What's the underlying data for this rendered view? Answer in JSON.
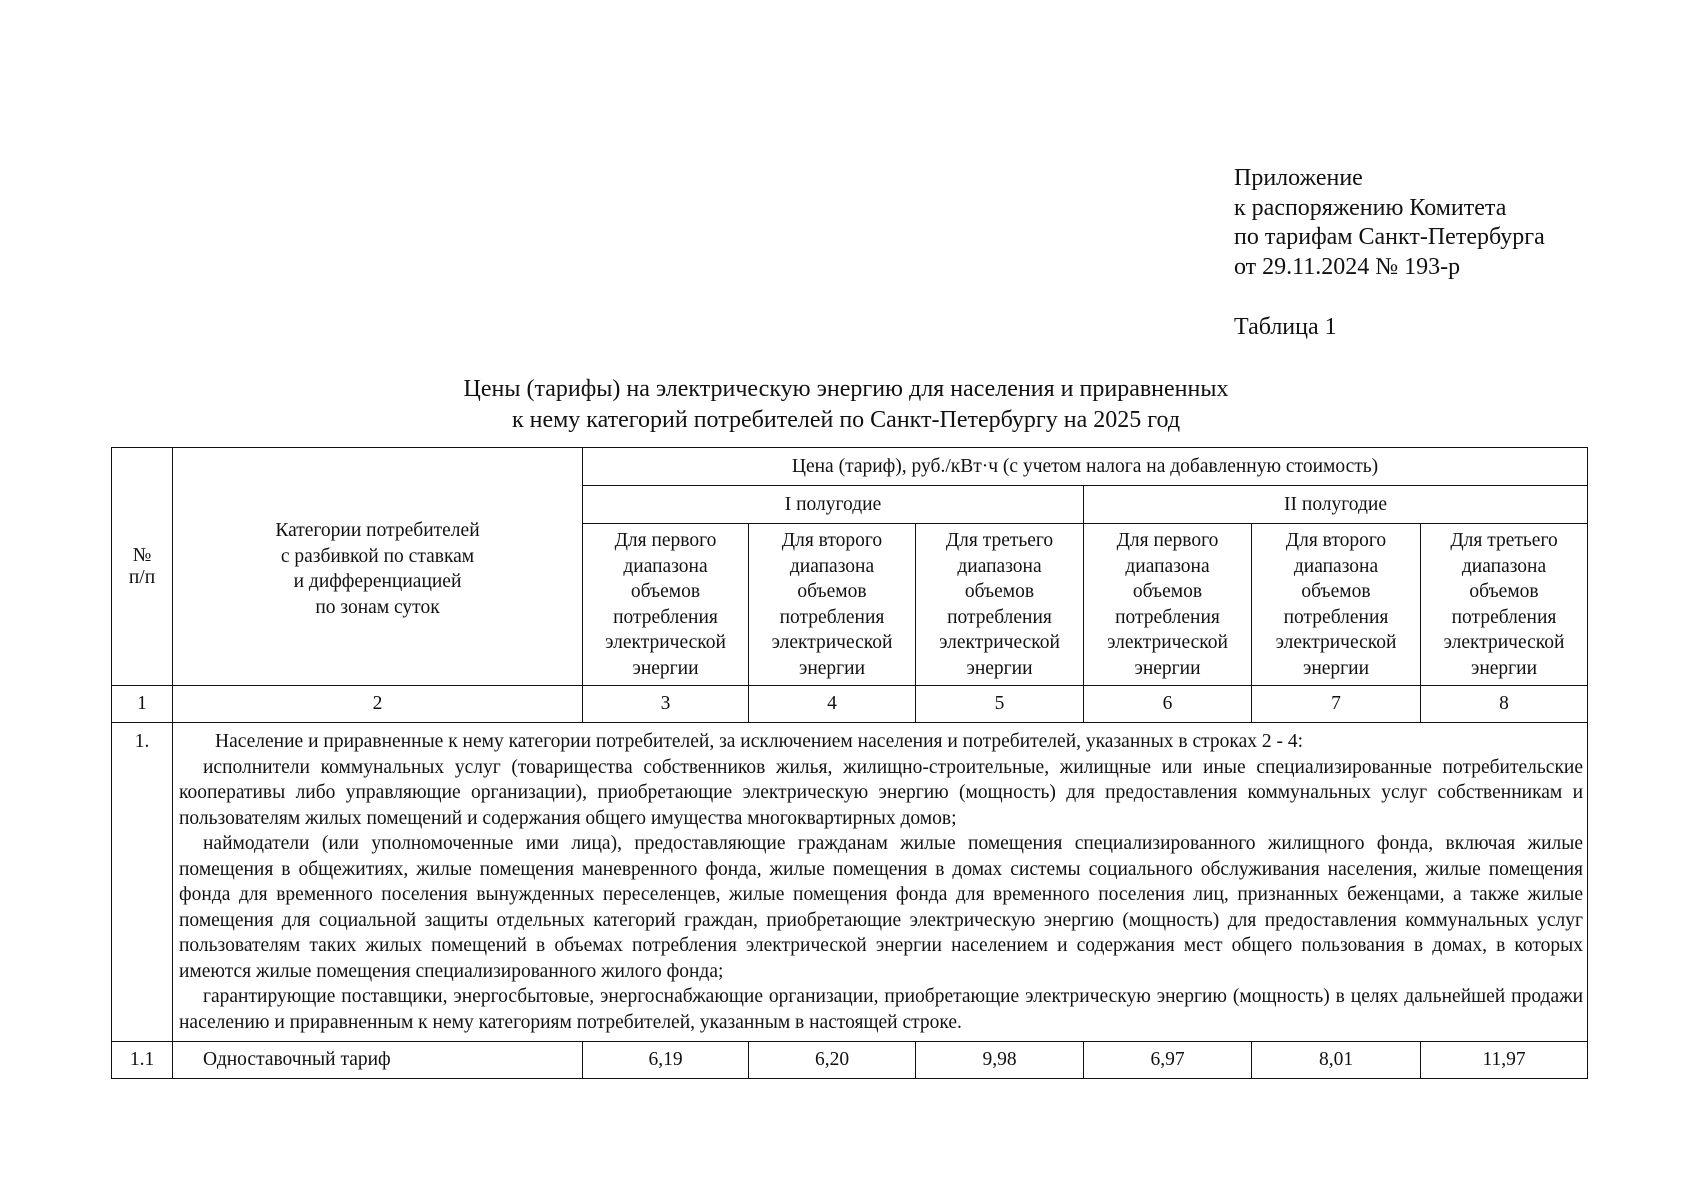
{
  "appendix": {
    "lines": [
      "Приложение",
      "к распоряжению Комитета",
      "по тарифам Санкт-Петербурга",
      "от 29.11.2024 № 193-р"
    ]
  },
  "table_label": "Таблица 1",
  "title": {
    "line1": "Цены (тарифы) на электрическую энергию для населения и приравненных",
    "line2": "к нему категорий потребителей по Санкт-Петербургу на 2025 год"
  },
  "table": {
    "col_no": "№ п/п",
    "col_category": [
      "Категории потребителей",
      "с разбивкой по ставкам",
      "и дифференциацией",
      "по зонам суток"
    ],
    "price_header": "Цена (тариф), руб./кВт·ч (с учетом налога на добавленную стоимость)",
    "half1": "I полугодие",
    "half2": "II полугодие",
    "ranges": [
      [
        "Для первого",
        "диапазона",
        "объемов",
        "потребления",
        "электрической",
        "энергии"
      ],
      [
        "Для второго",
        "диапазона",
        "объемов",
        "потребления",
        "электрической",
        "энергии"
      ],
      [
        "Для третьего",
        "диапазона",
        "объемов",
        "потребления",
        "электрической",
        "энергии"
      ],
      [
        "Для первого",
        "диапазона",
        "объемов",
        "потребления",
        "электрической",
        "энергии"
      ],
      [
        "Для второго",
        "диапазона",
        "объемов",
        "потребления",
        "электрической",
        "энергии"
      ],
      [
        "Для третьего",
        "диапазона",
        "объемов",
        "потребления",
        "электрической",
        "энергии"
      ]
    ],
    "col_numbers": [
      "1",
      "2",
      "3",
      "4",
      "5",
      "6",
      "7",
      "8"
    ],
    "row1": {
      "no": "1.",
      "paragraphs": [
        "Население и приравненные к нему категории потребителей, за исключением населения и потребителей, указанных в строках 2 - 4:",
        "исполнители коммунальных услуг (товарищества собственников жилья, жилищно-строительные, жилищные или иные специализированные потребительские кооперативы либо управляющие организации), приобретающие электрическую энергию (мощность) для предоставления коммунальных услуг собственникам и пользователям жилых помещений и содержания общего имущества многоквартирных домов;",
        "наймодатели (или уполномоченные ими лица), предоставляющие гражданам жилые помещения специализированного жилищного фонда, включая жилые помещения в общежитиях, жилые помещения маневренного фонда, жилые помещения в домах системы социального обслуживания населения, жилые помещения фонда для временного поселения вынужденных переселенцев, жилые помещения фонда для временного поселения лиц, признанных беженцами, а также жилые помещения для социальной защиты отдельных категорий граждан, приобретающие электрическую энергию (мощность) для предоставления коммунальных услуг пользователям таких жилых помещений в объемах потребления электрической энергии населением и содержания мест общего пользования в домах, в которых имеются жилые помещения специализированного жилого фонда;",
        "гарантирующие поставщики, энергосбытовые, энергоснабжающие организации, приобретающие электрическую энергию (мощность) в целях дальнейшей продажи населению и приравненным к нему категориям потребителей, указанным в настоящей строке."
      ]
    },
    "row11": {
      "no": "1.1",
      "name": "Одноставочный тариф",
      "values": [
        "6,19",
        "6,20",
        "9,98",
        "6,97",
        "8,01",
        "11,97"
      ]
    }
  }
}
